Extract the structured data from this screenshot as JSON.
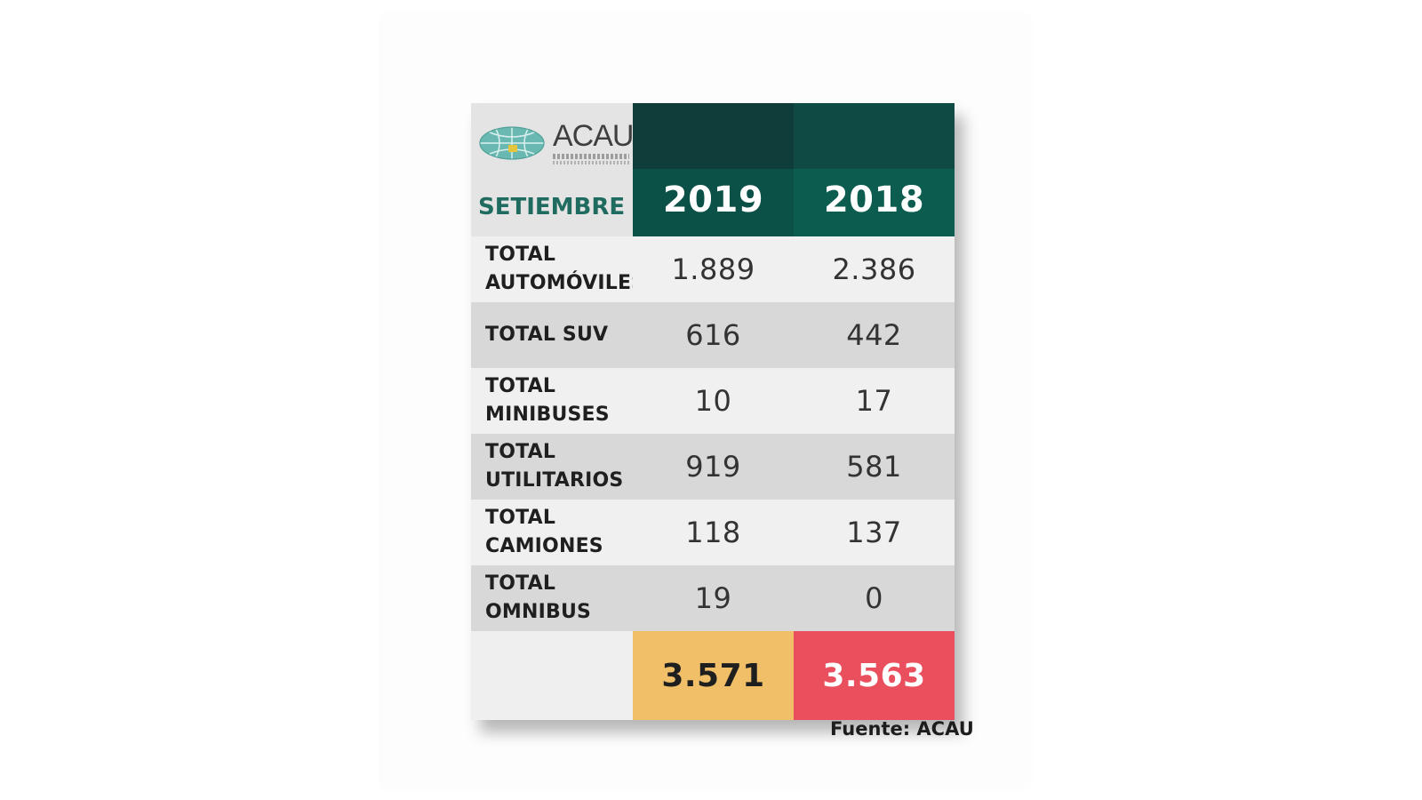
{
  "chart_data": {
    "type": "table",
    "title": "SETIEMBRE",
    "logo": {
      "name": "globe-logo-icon",
      "text": "ACAU",
      "subtext": "Asociación del Comercio Automotor del Uruguay"
    },
    "columns": [
      "2019",
      "2018"
    ],
    "rows": [
      {
        "label_line1": "TOTAL",
        "label_line2": "AUTOMÓVILES",
        "values": [
          "1.889",
          "2.386"
        ]
      },
      {
        "label_line1": "TOTAL SUV",
        "label_line2": "",
        "values": [
          "616",
          "442"
        ]
      },
      {
        "label_line1": "TOTAL",
        "label_line2": "MINIBUSES",
        "values": [
          "10",
          "17"
        ]
      },
      {
        "label_line1": "TOTAL",
        "label_line2": "UTILITARIOS",
        "values": [
          "919",
          "581"
        ]
      },
      {
        "label_line1": "TOTAL",
        "label_line2": "CAMIONES",
        "values": [
          "118",
          "137"
        ]
      },
      {
        "label_line1": "TOTAL",
        "label_line2": "OMNIBUS",
        "values": [
          "19",
          "0"
        ]
      }
    ],
    "totals": [
      "3.571",
      "3.563"
    ],
    "colors": {
      "header_dark": "#0f3d39",
      "header_green": "#0b5147",
      "month_text": "#1f6b5f",
      "total_2019": "#f0bf68",
      "total_2018": "#ea4f5d"
    }
  },
  "footer": {
    "source": "Fuente: ACAU"
  }
}
